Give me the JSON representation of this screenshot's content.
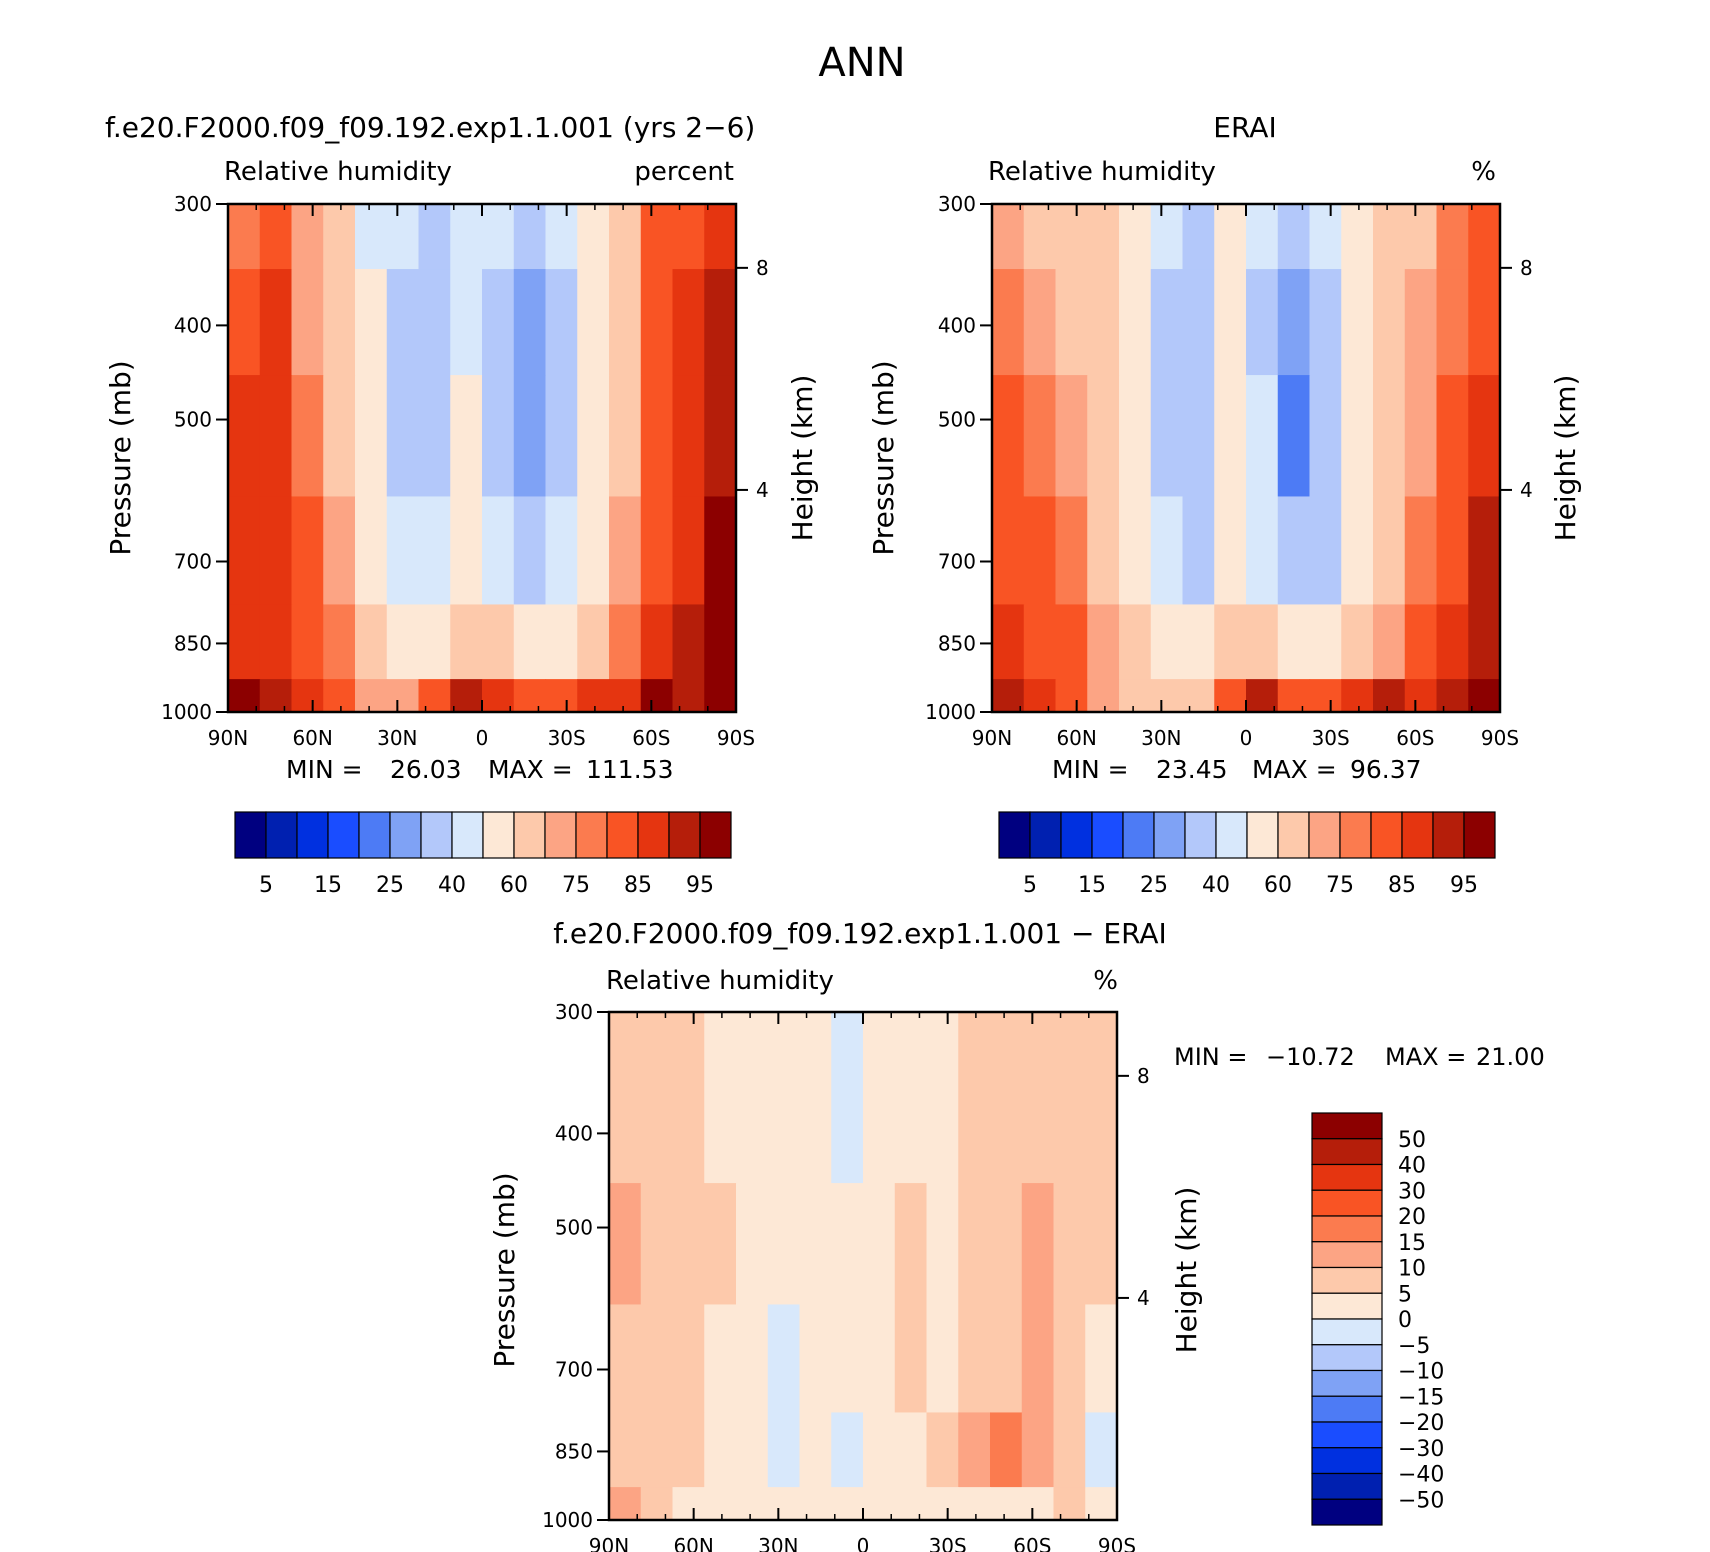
{
  "title": "ANN",
  "colors": {
    "model_levels": [
      "#000080",
      "#0020b0",
      "#0030e0",
      "#1a4dff",
      "#4d7bf5",
      "#7fa2f5",
      "#b3c8fa",
      "#d8e8fb",
      "#fde8d6",
      "#fdc9ab",
      "#fca484",
      "#fb7b4f",
      "#f95424",
      "#e53510",
      "#b51e0a",
      "#8c0000"
    ],
    "diff_levels": [
      "#000080",
      "#0020b0",
      "#0030e0",
      "#1a4dff",
      "#4d7bf5",
      "#7fa2f5",
      "#b3c8fa",
      "#d8e8fb",
      "#fde8d6",
      "#fdc9ab",
      "#fca484",
      "#fb7b4f",
      "#f95424",
      "#e53510",
      "#b51e0a",
      "#8c0000"
    ]
  },
  "chart_data": [
    {
      "type": "heatmap",
      "title": "f.e20.F2000.f09_f09.192.exp1.1.001 (yrs 2−6)",
      "subtitle_left": "Relative humidity",
      "subtitle_right": "percent",
      "ylabel": "Pressure (mb)",
      "ylabel_right": "Height (km)",
      "x_ticks": [
        "90N",
        "60N",
        "30N",
        "0",
        "30S",
        "60S",
        "90S"
      ],
      "y_ticks": [
        "300",
        "400",
        "500",
        "700",
        "850",
        "1000"
      ],
      "y_right_ticks": [
        "8",
        "4"
      ],
      "ylim": [
        1000,
        300
      ],
      "min_label": "MIN =",
      "min_value": "26.03",
      "max_label": "MAX =",
      "max_value": "111.53",
      "colorbar_labels": [
        "5",
        "15",
        "25",
        "40",
        "60",
        "75",
        "85",
        "95"
      ],
      "field": [
        [
          78,
          82,
          72,
          60,
          48,
          40,
          38,
          45,
          40,
          32,
          40,
          55,
          62,
          80,
          84,
          88
        ],
        [
          84,
          85,
          74,
          62,
          50,
          38,
          37,
          48,
          35,
          28,
          36,
          52,
          64,
          80,
          86,
          90
        ],
        [
          86,
          86,
          78,
          65,
          52,
          38,
          38,
          52,
          36,
          28,
          36,
          52,
          66,
          82,
          86,
          92
        ],
        [
          86,
          86,
          80,
          70,
          55,
          40,
          40,
          58,
          42,
          32,
          40,
          56,
          70,
          84,
          88,
          95
        ],
        [
          88,
          88,
          84,
          76,
          62,
          52,
          50,
          66,
          60,
          52,
          56,
          66,
          78,
          88,
          92,
          96
        ],
        [
          96,
          94,
          86,
          80,
          74,
          72,
          84,
          92,
          88,
          84,
          82,
          86,
          88,
          96,
          94,
          98
        ]
      ]
    },
    {
      "type": "heatmap",
      "title": "ERAI",
      "subtitle_left": "Relative humidity",
      "subtitle_right": "%",
      "ylabel": "Pressure (mb)",
      "ylabel_right": "Height (km)",
      "x_ticks": [
        "90N",
        "60N",
        "30N",
        "0",
        "30S",
        "60S",
        "90S"
      ],
      "y_ticks": [
        "300",
        "400",
        "500",
        "700",
        "850",
        "1000"
      ],
      "y_right_ticks": [
        "8",
        "4"
      ],
      "ylim": [
        1000,
        300
      ],
      "min_label": "MIN =",
      "min_value": "23.45",
      "max_label": "MAX =",
      "max_value": "96.37",
      "colorbar_labels": [
        "5",
        "15",
        "25",
        "40",
        "60",
        "75",
        "85",
        "95"
      ],
      "field": [
        [
          70,
          66,
          62,
          60,
          50,
          42,
          38,
          52,
          42,
          36,
          42,
          56,
          62,
          68,
          76,
          82
        ],
        [
          78,
          72,
          66,
          62,
          52,
          36,
          30,
          50,
          38,
          26,
          34,
          52,
          62,
          70,
          78,
          84
        ],
        [
          80,
          76,
          70,
          64,
          54,
          38,
          32,
          52,
          40,
          24,
          32,
          52,
          62,
          72,
          80,
          86
        ],
        [
          82,
          80,
          76,
          68,
          58,
          42,
          38,
          58,
          44,
          32,
          38,
          56,
          68,
          78,
          84,
          90
        ],
        [
          86,
          84,
          80,
          74,
          64,
          56,
          52,
          62,
          60,
          54,
          58,
          64,
          74,
          84,
          88,
          92
        ],
        [
          92,
          88,
          82,
          72,
          64,
          62,
          66,
          84,
          90,
          84,
          80,
          86,
          90,
          88,
          92,
          95
        ]
      ]
    },
    {
      "type": "heatmap",
      "title": "f.e20.F2000.f09_f09.192.exp1.1.001 − ERAI",
      "subtitle_left": "Relative humidity",
      "subtitle_right": "%",
      "ylabel": "Pressure (mb)",
      "ylabel_right": "Height (km)",
      "x_ticks": [
        "90N",
        "60N",
        "30N",
        "0",
        "30S",
        "60S",
        "90S"
      ],
      "y_ticks": [
        "300",
        "400",
        "500",
        "700",
        "850",
        "1000"
      ],
      "y_right_ticks": [
        "8",
        "4"
      ],
      "ylim": [
        1000,
        300
      ],
      "min_label": "MIN =",
      "min_value": "−10.72",
      "max_label": "MAX =",
      "max_value": "21.00",
      "colorbar_labels": [
        "50",
        "40",
        "30",
        "20",
        "15",
        "10",
        "5",
        "0",
        "−5",
        "−10",
        "−15",
        "−20",
        "−30",
        "−40",
        "−50"
      ],
      "field": [
        [
          6,
          6,
          6,
          2,
          2,
          2,
          2,
          -2,
          2,
          2,
          2,
          6,
          6,
          6,
          6,
          6
        ],
        [
          6,
          7,
          6,
          3,
          2,
          2,
          2,
          -3,
          2,
          2,
          3,
          7,
          6,
          6,
          7,
          6
        ],
        [
          12,
          7,
          6,
          6,
          2,
          2,
          2,
          2,
          2,
          6,
          2,
          7,
          7,
          12,
          6,
          6
        ],
        [
          7,
          7,
          6,
          3,
          2,
          -3,
          2,
          2,
          3,
          6,
          3,
          7,
          8,
          12,
          6,
          2
        ],
        [
          8,
          7,
          6,
          3,
          3,
          -1,
          2,
          -3,
          2,
          3,
          7,
          12,
          18,
          13,
          6,
          -4
        ],
        [
          11,
          8,
          4,
          2,
          2,
          2,
          3,
          2,
          2,
          4,
          4,
          2,
          3,
          3,
          6,
          2
        ]
      ]
    }
  ]
}
